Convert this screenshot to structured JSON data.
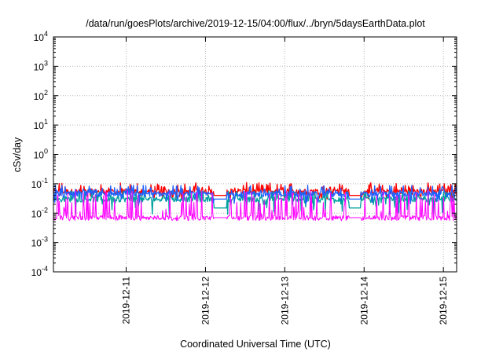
{
  "chart_data": {
    "type": "line",
    "title": "/data/run/goesPlots/archive/2019-12-15/04:00/flux/../bryn/5daysEarthData.plot",
    "xlabel": "Coordinated Universal Time (UTC)",
    "ylabel": "cSv/day",
    "x_range": [
      "2019-12-10T02:00",
      "2019-12-15T04:00"
    ],
    "x_ticks": [
      "2019-12-11",
      "2019-12-12",
      "2019-12-13",
      "2019-12-14",
      "2019-12-15"
    ],
    "y_scale": "log",
    "ylim": [
      0.0001,
      10000
    ],
    "y_ticks": [
      {
        "base": "10",
        "exp": "-4"
      },
      {
        "base": "10",
        "exp": "-3"
      },
      {
        "base": "10",
        "exp": "-2"
      },
      {
        "base": "10",
        "exp": "-1"
      },
      {
        "base": "10",
        "exp": "0"
      },
      {
        "base": "10",
        "exp": "1"
      },
      {
        "base": "10",
        "exp": "2"
      },
      {
        "base": "10",
        "exp": "3"
      },
      {
        "base": "10",
        "exp": "4"
      }
    ],
    "grid": true,
    "legend": "none",
    "data_gaps": [
      {
        "start": "2019-12-12T02:30",
        "end": "2019-12-12T06:30"
      },
      {
        "start": "2019-12-13T19:30",
        "end": "2019-12-13T23:00"
      }
    ],
    "series": [
      {
        "color": "#ff0000",
        "baseline": 0.055,
        "spike_max": 0.11,
        "dip_min": 0.03,
        "gap_value": 0.04
      },
      {
        "color": "#00a0a0",
        "baseline": 0.03,
        "spike_max": 0.06,
        "dip_min": 0.009,
        "gap_value": 0.015
      },
      {
        "color": "#2060ff",
        "baseline": 0.045,
        "spike_max": 0.09,
        "dip_min": 0.02,
        "gap_value": 0.03
      },
      {
        "color": "#ff00ff",
        "baseline": 0.007,
        "spike_max": 0.06,
        "dip_min": 0.0055,
        "gap_value": 0.007
      }
    ]
  }
}
